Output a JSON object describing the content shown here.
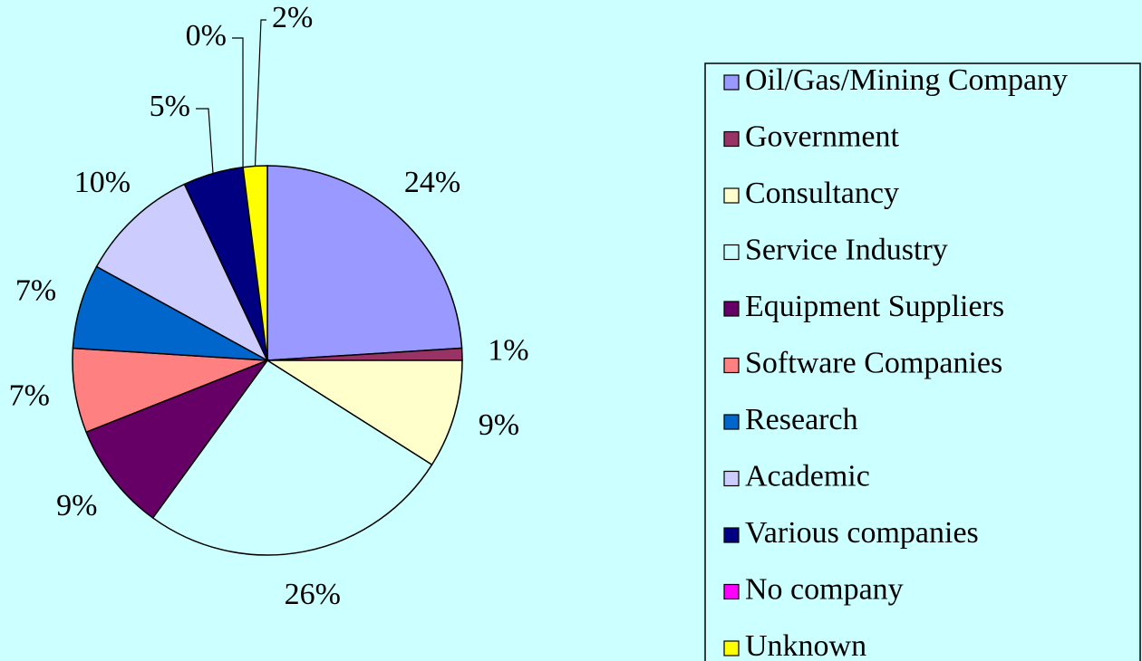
{
  "chart_data": {
    "type": "pie",
    "categories": [
      "Oil/Gas/Mining Company",
      "Government",
      "Consultancy",
      "Service Industry",
      "Equipment Suppliers",
      "Software Companies",
      "Research",
      "Academic",
      "Various companies",
      "No company",
      "Unknown"
    ],
    "values": [
      24,
      1,
      9,
      26,
      9,
      7,
      7,
      10,
      5,
      0,
      2
    ],
    "value_labels": [
      "24%",
      "1%",
      "9%",
      "26%",
      "9%",
      "7%",
      "7%",
      "10%",
      "5%",
      "0%",
      "2%"
    ],
    "colors": [
      "#9999ff",
      "#993366",
      "#ffffcc",
      "#ccffff",
      "#660066",
      "#ff8080",
      "#0066cc",
      "#ccccff",
      "#000080",
      "#ff00ff",
      "#ffff00"
    ],
    "legend": "right"
  }
}
